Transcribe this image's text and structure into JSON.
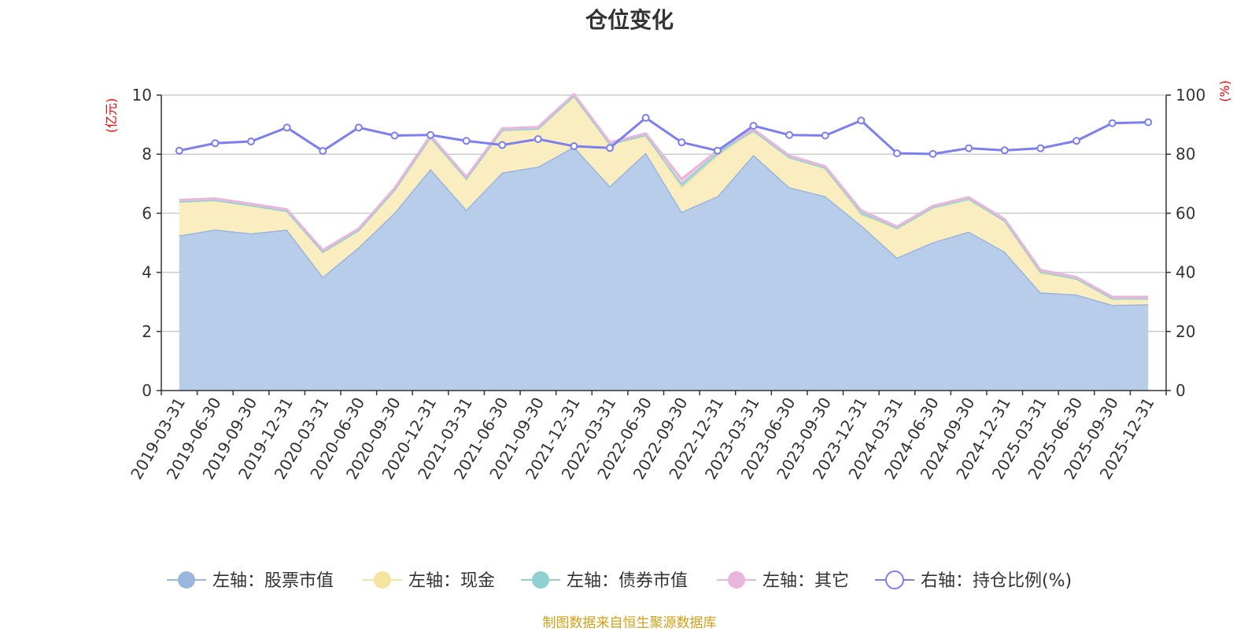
{
  "title": "仓位变化",
  "footer": "制图数据来自恒生聚源数据库",
  "colors": {
    "stock_fill": "#b8cdea",
    "stock_line": "#9ab5de",
    "cash_fill": "#faedbf",
    "cash_line": "#f5e3a0",
    "bond_fill": "#a6dada",
    "bond_line": "#8fd0d0",
    "other_fill": "#f1cde6",
    "other_line": "#e8b6dc",
    "ratio_line": "#7b7ff0",
    "axis_unit": "#ff0000",
    "footer": "#d4a017"
  },
  "chart_data": {
    "type": "area",
    "categories": [
      "2019-03-31",
      "2019-06-30",
      "2019-09-30",
      "2019-12-31",
      "2020-03-31",
      "2020-06-30",
      "2020-09-30",
      "2020-12-31",
      "2021-03-31",
      "2021-06-30",
      "2021-09-30",
      "2021-12-31",
      "2022-03-31",
      "2022-06-30",
      "2022-09-30",
      "2022-12-31",
      "2023-03-31",
      "2023-06-30",
      "2023-09-30",
      "2023-12-31",
      "2024-03-31",
      "2024-06-30",
      "2024-09-30",
      "2024-12-31",
      "2025-03-31",
      "2025-06-30",
      "2025-09-30",
      "2025-12-31"
    ],
    "left_axis": {
      "unit": "(亿元)",
      "ylim": [
        0,
        10
      ],
      "ticks": [
        "0",
        "2",
        "4",
        "6",
        "8",
        "10"
      ]
    },
    "right_axis": {
      "unit": "(%)",
      "ylim": [
        0,
        100
      ],
      "ticks": [
        "0",
        "20",
        "40",
        "60",
        "80",
        "100"
      ]
    },
    "grid": true,
    "legend_position": "bottom",
    "series": [
      {
        "name": "左轴：股票市值",
        "axis": "left",
        "kind": "stacked-area",
        "color": "stock",
        "values": [
          5.25,
          5.45,
          5.32,
          5.45,
          3.85,
          4.85,
          6.02,
          7.5,
          6.12,
          7.38,
          7.58,
          8.25,
          6.92,
          8.05,
          6.05,
          6.58,
          7.98,
          6.88,
          6.58,
          5.6,
          4.5,
          5.02,
          5.38,
          4.7,
          3.32,
          3.25,
          2.9,
          2.92
        ]
      },
      {
        "name": "左轴：现金",
        "axis": "left",
        "kind": "stacked-area",
        "color": "cash",
        "values": [
          1.15,
          1.0,
          0.95,
          0.63,
          0.85,
          0.58,
          0.78,
          1.08,
          1.06,
          1.44,
          1.29,
          1.73,
          1.43,
          0.6,
          0.84,
          1.38,
          0.82,
          1.02,
          0.96,
          0.35,
          1.0,
          1.18,
          1.11,
          1.05,
          0.66,
          0.54,
          0.22,
          0.2
        ]
      },
      {
        "name": "左轴：债券市值",
        "axis": "left",
        "kind": "stacked-area",
        "color": "bond",
        "values": [
          0,
          0,
          0,
          0,
          0,
          0,
          0,
          0,
          0,
          0,
          0,
          0,
          0,
          0,
          0.12,
          0.12,
          0,
          0,
          0,
          0.1,
          0,
          0,
          0,
          0,
          0.05,
          0,
          0,
          0
        ]
      },
      {
        "name": "左轴：其它",
        "axis": "left",
        "kind": "stacked-area",
        "color": "other",
        "values": [
          0.05,
          0.05,
          0.05,
          0.05,
          0.05,
          0.05,
          0.05,
          0.05,
          0.05,
          0.05,
          0.05,
          0.05,
          0.05,
          0.05,
          0.15,
          0.05,
          0.05,
          0.05,
          0.05,
          0.05,
          0.05,
          0.05,
          0.05,
          0.05,
          0.05,
          0.05,
          0.05,
          0.05
        ]
      },
      {
        "name": "右轴：持仓比例(%)",
        "axis": "right",
        "kind": "line",
        "color": "ratio",
        "values": [
          81.2,
          83.7,
          84.3,
          89,
          81.1,
          89,
          86.3,
          86.5,
          84.5,
          83.1,
          85.1,
          82.7,
          82.1,
          92.3,
          84,
          81.2,
          89.6,
          86.5,
          86.3,
          91.4,
          80.3,
          80.1,
          82,
          81.3,
          82,
          84.5,
          90.5,
          90.8
        ]
      }
    ]
  }
}
